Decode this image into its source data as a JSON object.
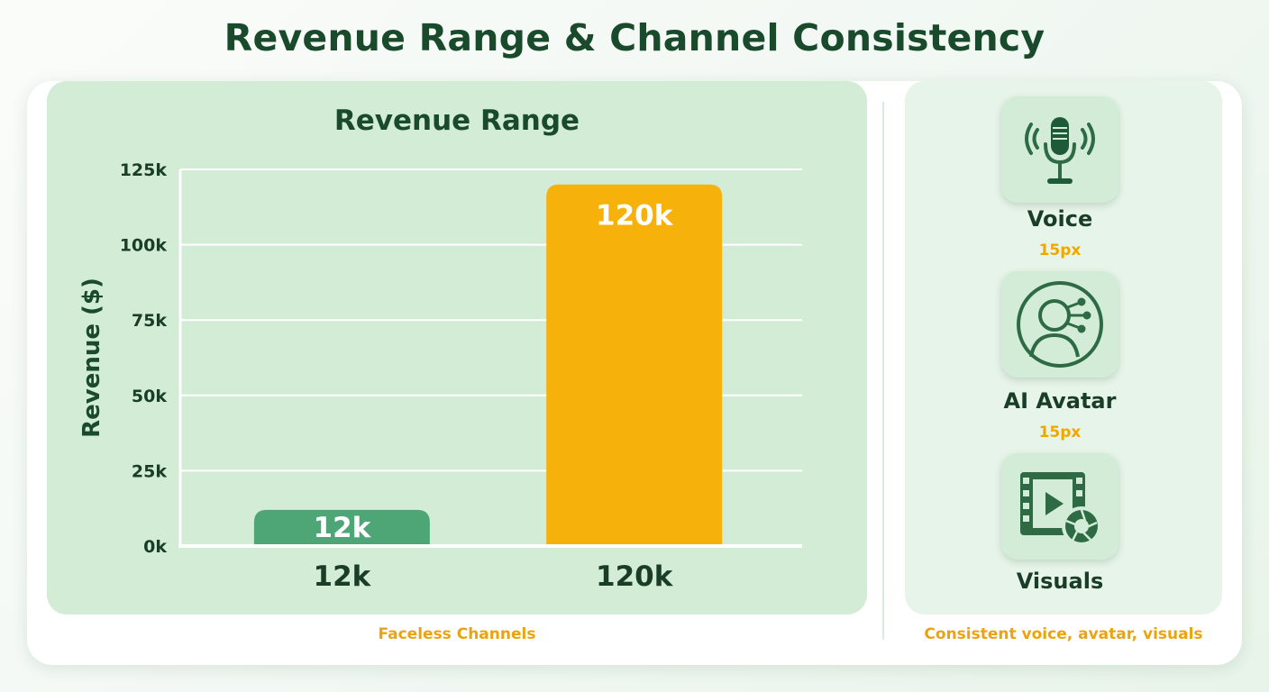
{
  "title": "Revenue Range & Channel Consistency",
  "chart_data": {
    "type": "bar",
    "title": "Revenue Range",
    "ylabel": "Revenue ($)",
    "xlabel": "",
    "ylim": [
      0,
      125000
    ],
    "yticks": [
      "0k",
      "25k",
      "50k",
      "75k",
      "100k",
      "125k"
    ],
    "ytick_values": [
      0,
      25000,
      50000,
      75000,
      100000,
      125000
    ],
    "categories": [
      "12k",
      "120k"
    ],
    "values": [
      12000,
      120000
    ],
    "data_labels": [
      "12k",
      "120k"
    ],
    "colors": [
      "#4ea676",
      "#f7b10b"
    ],
    "grid": true,
    "caption": "Faceless Channels"
  },
  "side": {
    "items": [
      {
        "label": "Voice",
        "note": "15px",
        "icon": "microphone-icon"
      },
      {
        "label": "AI Avatar",
        "note": "15px",
        "icon": "ai-avatar-icon"
      },
      {
        "label": "Visuals",
        "note": "",
        "icon": "film-camera-icon"
      }
    ],
    "caption": "Consistent voice, avatar, visuals"
  },
  "colors": {
    "title": "#1a4a2c",
    "accent": "#f0a800",
    "green": "#2e6b45"
  }
}
